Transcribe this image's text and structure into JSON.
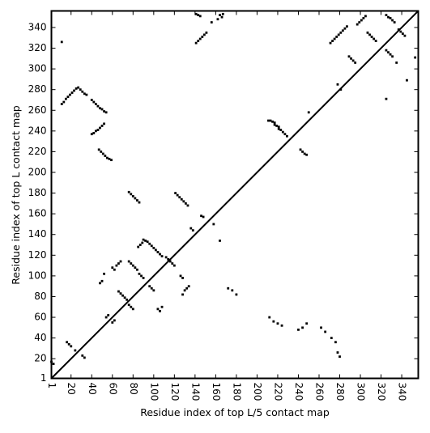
{
  "chart_data": {
    "type": "scatter",
    "xlabel": "Residue index of top L/5 contact map",
    "ylabel": "Residue index of top L contact map",
    "xlim": [
      1,
      356
    ],
    "ylim": [
      1,
      356
    ],
    "x_ticks": [
      1,
      20,
      40,
      60,
      80,
      100,
      120,
      140,
      160,
      180,
      200,
      220,
      240,
      260,
      280,
      300,
      320,
      340
    ],
    "y_ticks": [
      1,
      20,
      40,
      60,
      80,
      100,
      120,
      140,
      160,
      180,
      200,
      220,
      240,
      260,
      280,
      300,
      320,
      340
    ],
    "diagonal": [
      [
        1,
        1
      ],
      [
        356,
        356
      ]
    ],
    "upper_triangle_points": [
      [
        11,
        266
      ],
      [
        13,
        268
      ],
      [
        15,
        271
      ],
      [
        17,
        273
      ],
      [
        19,
        275
      ],
      [
        21,
        277
      ],
      [
        23,
        279
      ],
      [
        25,
        281
      ],
      [
        27,
        282
      ],
      [
        29,
        280
      ],
      [
        31,
        278
      ],
      [
        33,
        276
      ],
      [
        35,
        275
      ],
      [
        40,
        270
      ],
      [
        42,
        268
      ],
      [
        44,
        266
      ],
      [
        46,
        264
      ],
      [
        48,
        262
      ],
      [
        50,
        261
      ],
      [
        52,
        259
      ],
      [
        54,
        258
      ],
      [
        40,
        237
      ],
      [
        42,
        238
      ],
      [
        44,
        240
      ],
      [
        46,
        241
      ],
      [
        48,
        243
      ],
      [
        50,
        245
      ],
      [
        52,
        247
      ],
      [
        47,
        222
      ],
      [
        49,
        220
      ],
      [
        51,
        218
      ],
      [
        53,
        216
      ],
      [
        55,
        214
      ],
      [
        57,
        213
      ],
      [
        59,
        212
      ],
      [
        76,
        181
      ],
      [
        78,
        179
      ],
      [
        80,
        177
      ],
      [
        82,
        175
      ],
      [
        84,
        173
      ],
      [
        86,
        171
      ],
      [
        90,
        135
      ],
      [
        92,
        134
      ],
      [
        94,
        133
      ],
      [
        96,
        131
      ],
      [
        98,
        129
      ],
      [
        100,
        127
      ],
      [
        102,
        125
      ],
      [
        104,
        123
      ],
      [
        106,
        121
      ],
      [
        108,
        119
      ],
      [
        85,
        128
      ],
      [
        87,
        130
      ],
      [
        89,
        132
      ],
      [
        121,
        180
      ],
      [
        123,
        178
      ],
      [
        125,
        176
      ],
      [
        127,
        174
      ],
      [
        129,
        172
      ],
      [
        131,
        170
      ],
      [
        133,
        168
      ],
      [
        136,
        146
      ],
      [
        138,
        144
      ],
      [
        146,
        158
      ],
      [
        148,
        157
      ],
      [
        158,
        150
      ],
      [
        141,
        353
      ],
      [
        143,
        352
      ],
      [
        145,
        351
      ],
      [
        141,
        325
      ],
      [
        143,
        327
      ],
      [
        145,
        329
      ],
      [
        147,
        331
      ],
      [
        149,
        333
      ],
      [
        151,
        335
      ],
      [
        271,
        325
      ],
      [
        273,
        327
      ],
      [
        275,
        329
      ],
      [
        277,
        331
      ],
      [
        279,
        333
      ],
      [
        281,
        335
      ],
      [
        283,
        337
      ],
      [
        285,
        339
      ],
      [
        287,
        341
      ],
      [
        297,
        343
      ],
      [
        299,
        345
      ],
      [
        301,
        347
      ],
      [
        303,
        349
      ],
      [
        305,
        351
      ],
      [
        307,
        335
      ],
      [
        309,
        333
      ],
      [
        311,
        331
      ],
      [
        313,
        329
      ],
      [
        315,
        327
      ],
      [
        325,
        318
      ],
      [
        327,
        316
      ],
      [
        329,
        314
      ],
      [
        331,
        312
      ],
      [
        325,
        352
      ],
      [
        327,
        350
      ],
      [
        329,
        349
      ],
      [
        331,
        347
      ],
      [
        333,
        345
      ],
      [
        337,
        338
      ],
      [
        339,
        336
      ],
      [
        341,
        334
      ],
      [
        343,
        332
      ],
      [
        289,
        312
      ],
      [
        291,
        310
      ],
      [
        293,
        308
      ],
      [
        295,
        306
      ],
      [
        211,
        250
      ],
      [
        213,
        250
      ],
      [
        215,
        249
      ],
      [
        217,
        248
      ],
      [
        217,
        246
      ],
      [
        219,
        245
      ],
      [
        221,
        244
      ],
      [
        221,
        242
      ],
      [
        223,
        241
      ],
      [
        225,
        239
      ],
      [
        227,
        237
      ],
      [
        229,
        235
      ],
      [
        242,
        222
      ],
      [
        244,
        220
      ],
      [
        246,
        218
      ],
      [
        248,
        217
      ],
      [
        164,
        352
      ],
      [
        166,
        350
      ],
      [
        167,
        353
      ],
      [
        353,
        311
      ],
      [
        345,
        289
      ],
      [
        335,
        306
      ],
      [
        325,
        271
      ],
      [
        278,
        285
      ],
      [
        281,
        280
      ],
      [
        250,
        258
      ],
      [
        1,
        17
      ],
      [
        3,
        15
      ],
      [
        11,
        326
      ],
      [
        156,
        345
      ],
      [
        162,
        348
      ]
    ],
    "lower_triangle_points": [
      [
        16,
        36
      ],
      [
        18,
        34
      ],
      [
        20,
        32
      ],
      [
        24,
        28
      ],
      [
        33,
        21
      ],
      [
        31,
        23
      ],
      [
        48,
        93
      ],
      [
        50,
        95
      ],
      [
        52,
        102
      ],
      [
        60,
        55
      ],
      [
        62,
        57
      ],
      [
        54,
        60
      ],
      [
        56,
        62
      ],
      [
        60,
        108
      ],
      [
        62,
        106
      ],
      [
        64,
        110
      ],
      [
        66,
        112
      ],
      [
        68,
        114
      ],
      [
        66,
        85
      ],
      [
        68,
        83
      ],
      [
        70,
        81
      ],
      [
        72,
        79
      ],
      [
        74,
        77
      ],
      [
        76,
        72
      ],
      [
        78,
        70
      ],
      [
        80,
        68
      ],
      [
        76,
        114
      ],
      [
        78,
        112
      ],
      [
        80,
        110
      ],
      [
        82,
        108
      ],
      [
        84,
        106
      ],
      [
        86,
        102
      ],
      [
        88,
        100
      ],
      [
        90,
        98
      ],
      [
        96,
        90
      ],
      [
        98,
        88
      ],
      [
        100,
        86
      ],
      [
        104,
        68
      ],
      [
        106,
        66
      ],
      [
        108,
        70
      ],
      [
        112,
        118
      ],
      [
        114,
        116
      ],
      [
        116,
        114
      ],
      [
        118,
        112
      ],
      [
        120,
        110
      ],
      [
        126,
        100
      ],
      [
        128,
        98
      ],
      [
        128,
        82
      ],
      [
        130,
        86
      ],
      [
        132,
        88
      ],
      [
        134,
        90
      ],
      [
        164,
        134
      ],
      [
        172,
        88
      ],
      [
        176,
        86
      ],
      [
        180,
        82
      ],
      [
        212,
        60
      ],
      [
        216,
        56
      ],
      [
        220,
        54
      ],
      [
        224,
        52
      ],
      [
        240,
        48
      ],
      [
        244,
        50
      ],
      [
        248,
        54
      ],
      [
        262,
        50
      ],
      [
        266,
        46
      ],
      [
        272,
        40
      ],
      [
        276,
        36
      ],
      [
        278,
        26
      ],
      [
        280,
        22
      ]
    ]
  }
}
